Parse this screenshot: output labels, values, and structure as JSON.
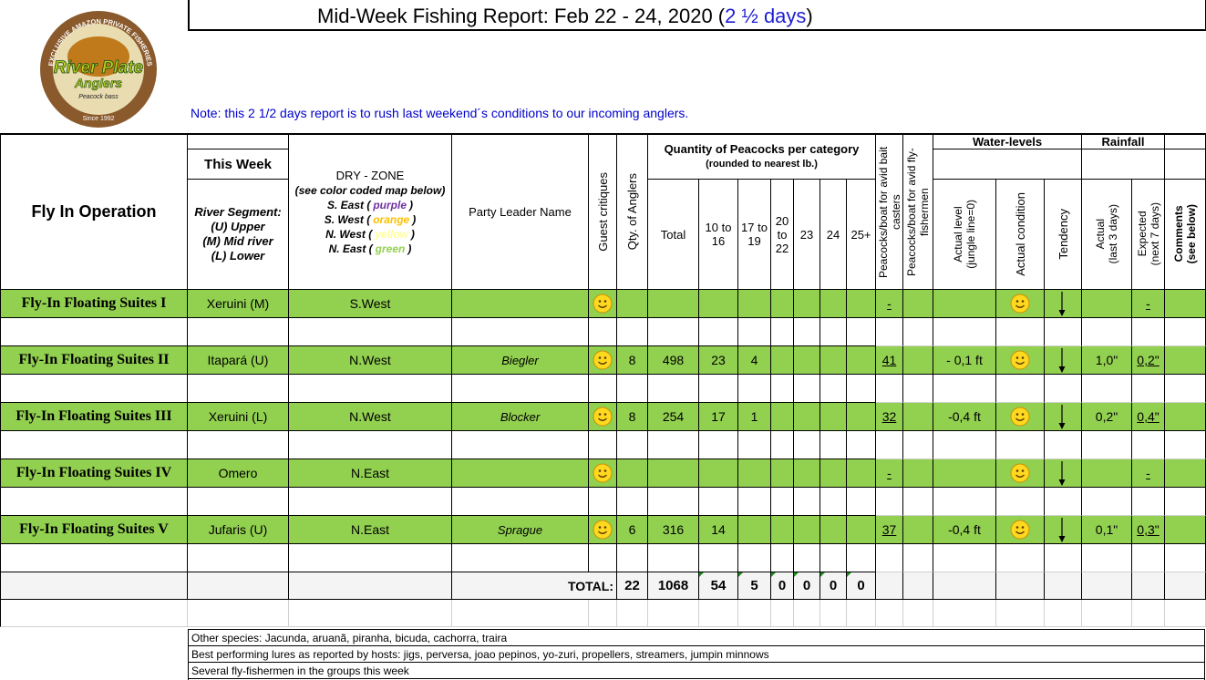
{
  "header": {
    "title": "Mid-Week Fishing Report: Feb 22 - 24, 2020 (",
    "title_highlight": "2 ½ days",
    "title_close": ")",
    "note": "Note:  this 2 1/2 days report is to rush last weekend´s conditions to our incoming anglers."
  },
  "logo": {
    "arc": "EXCLUSIVE AMAZON PRIVATE FISHERIES",
    "name_1": "River Plate",
    "name_2": "Anglers",
    "tagline": "Peacock bass",
    "since": "Since 1992"
  },
  "table": {
    "headers": {
      "operation": "Fly In Operation",
      "this_week": "This Week",
      "segment": [
        "River Segment:",
        "(U) Upper",
        "(M) Mid river",
        "(L) Lower"
      ],
      "dry_zone": "DRY - ZONE",
      "dry_zone_note": "(see color coded map below)",
      "zones": [
        {
          "prefix": "S. East (",
          "word": "purple",
          "suffix": ")",
          "color": "#7030a0"
        },
        {
          "prefix": "S. West (",
          "word": "orange",
          "suffix": ")",
          "color": "#ffc000"
        },
        {
          "prefix": "N. West (",
          "word": "yellow",
          "suffix": ")",
          "color": "#ffff99"
        },
        {
          "prefix": "N. East (",
          "word": "green",
          "suffix": ")",
          "color": "#92d050"
        }
      ],
      "party_leader": "Party Leader Name",
      "guest_critiques": "Guest critiques",
      "qty_anglers": "Qty. of Anglers",
      "peacocks": "Quantity of Peacocks per category",
      "peacocks_note": "(rounded to nearest lb.)",
      "categories": [
        "Total",
        "10 to 16",
        "17 to 19",
        "20 to 22",
        "23",
        "24",
        "25+"
      ],
      "bait_casters": "Peacocks/boat for avid bait casters",
      "fly_fishermen": "Peacocks/boat for avid fly-fishermen",
      "water_levels": "Water-levels",
      "actual_level": "Actual level",
      "actual_level_note": "(jungle line=0)",
      "actual_condition": "Actual condition",
      "tendency": "Tendency",
      "rainfall": "Rainfall",
      "rain_actual": "Actual",
      "rain_actual_note": "(last 3 days)",
      "rain_expected": "Expected",
      "rain_expected_note": "(next 7 days)",
      "comments": "Comments",
      "comments_note": "(see below)"
    },
    "rows": [
      {
        "name": "Fly-In Floating Suites I",
        "segment": "Xeruini (M)",
        "zone": "S.West",
        "bait_casters": "-",
        "rain_expected": "-"
      },
      {
        "name": "Fly-In Floating Suites II",
        "segment": "Itapará (U)",
        "zone": "N.West",
        "leader": "Biegler",
        "anglers": 8,
        "total": 498,
        "c10_16": 23,
        "c17_19": 4,
        "bait_casters": 41,
        "level": "- 0,1 ft",
        "rain_actual": "1,0\"",
        "rain_expected": "0,2\""
      },
      {
        "name": "Fly-In Floating Suites III",
        "segment": "Xeruini (L)",
        "zone": "N.West",
        "leader": "Blocker",
        "anglers": 8,
        "total": 254,
        "c10_16": 17,
        "c17_19": 1,
        "bait_casters": 32,
        "level": "-0,4 ft",
        "rain_actual": "0,2\"",
        "rain_expected": "0,4\""
      },
      {
        "name": "Fly-In Floating Suites IV",
        "segment": "Omero",
        "zone": "N.East",
        "bait_casters": "-",
        "rain_expected": "-"
      },
      {
        "name": "Fly-In Floating Suites V",
        "segment": "Jufaris (U)",
        "zone": "N.East",
        "leader": "Sprague",
        "anglers": 6,
        "total": 316,
        "c10_16": 14,
        "bait_casters": 37,
        "level": "-0,4 ft",
        "rain_actual": "0,1\"",
        "rain_expected": "0,3\""
      }
    ],
    "total": {
      "label": "TOTAL:",
      "anglers": 22,
      "total": 1068,
      "c10_16": 54,
      "c17_19": 5,
      "c20_22": 0,
      "c23": 0,
      "c24": 0,
      "c25": 0
    }
  },
  "notes": [
    "Other species: Jacunda, aruanã, piranha,  bicuda, cachorra, traira",
    "Best performing lures as reported by hosts:  jigs, perversa, joao pepinos, yo-zuri, propellers, streamers, jumpin minnows",
    "Several fly-fishermen in the groups this week"
  ]
}
